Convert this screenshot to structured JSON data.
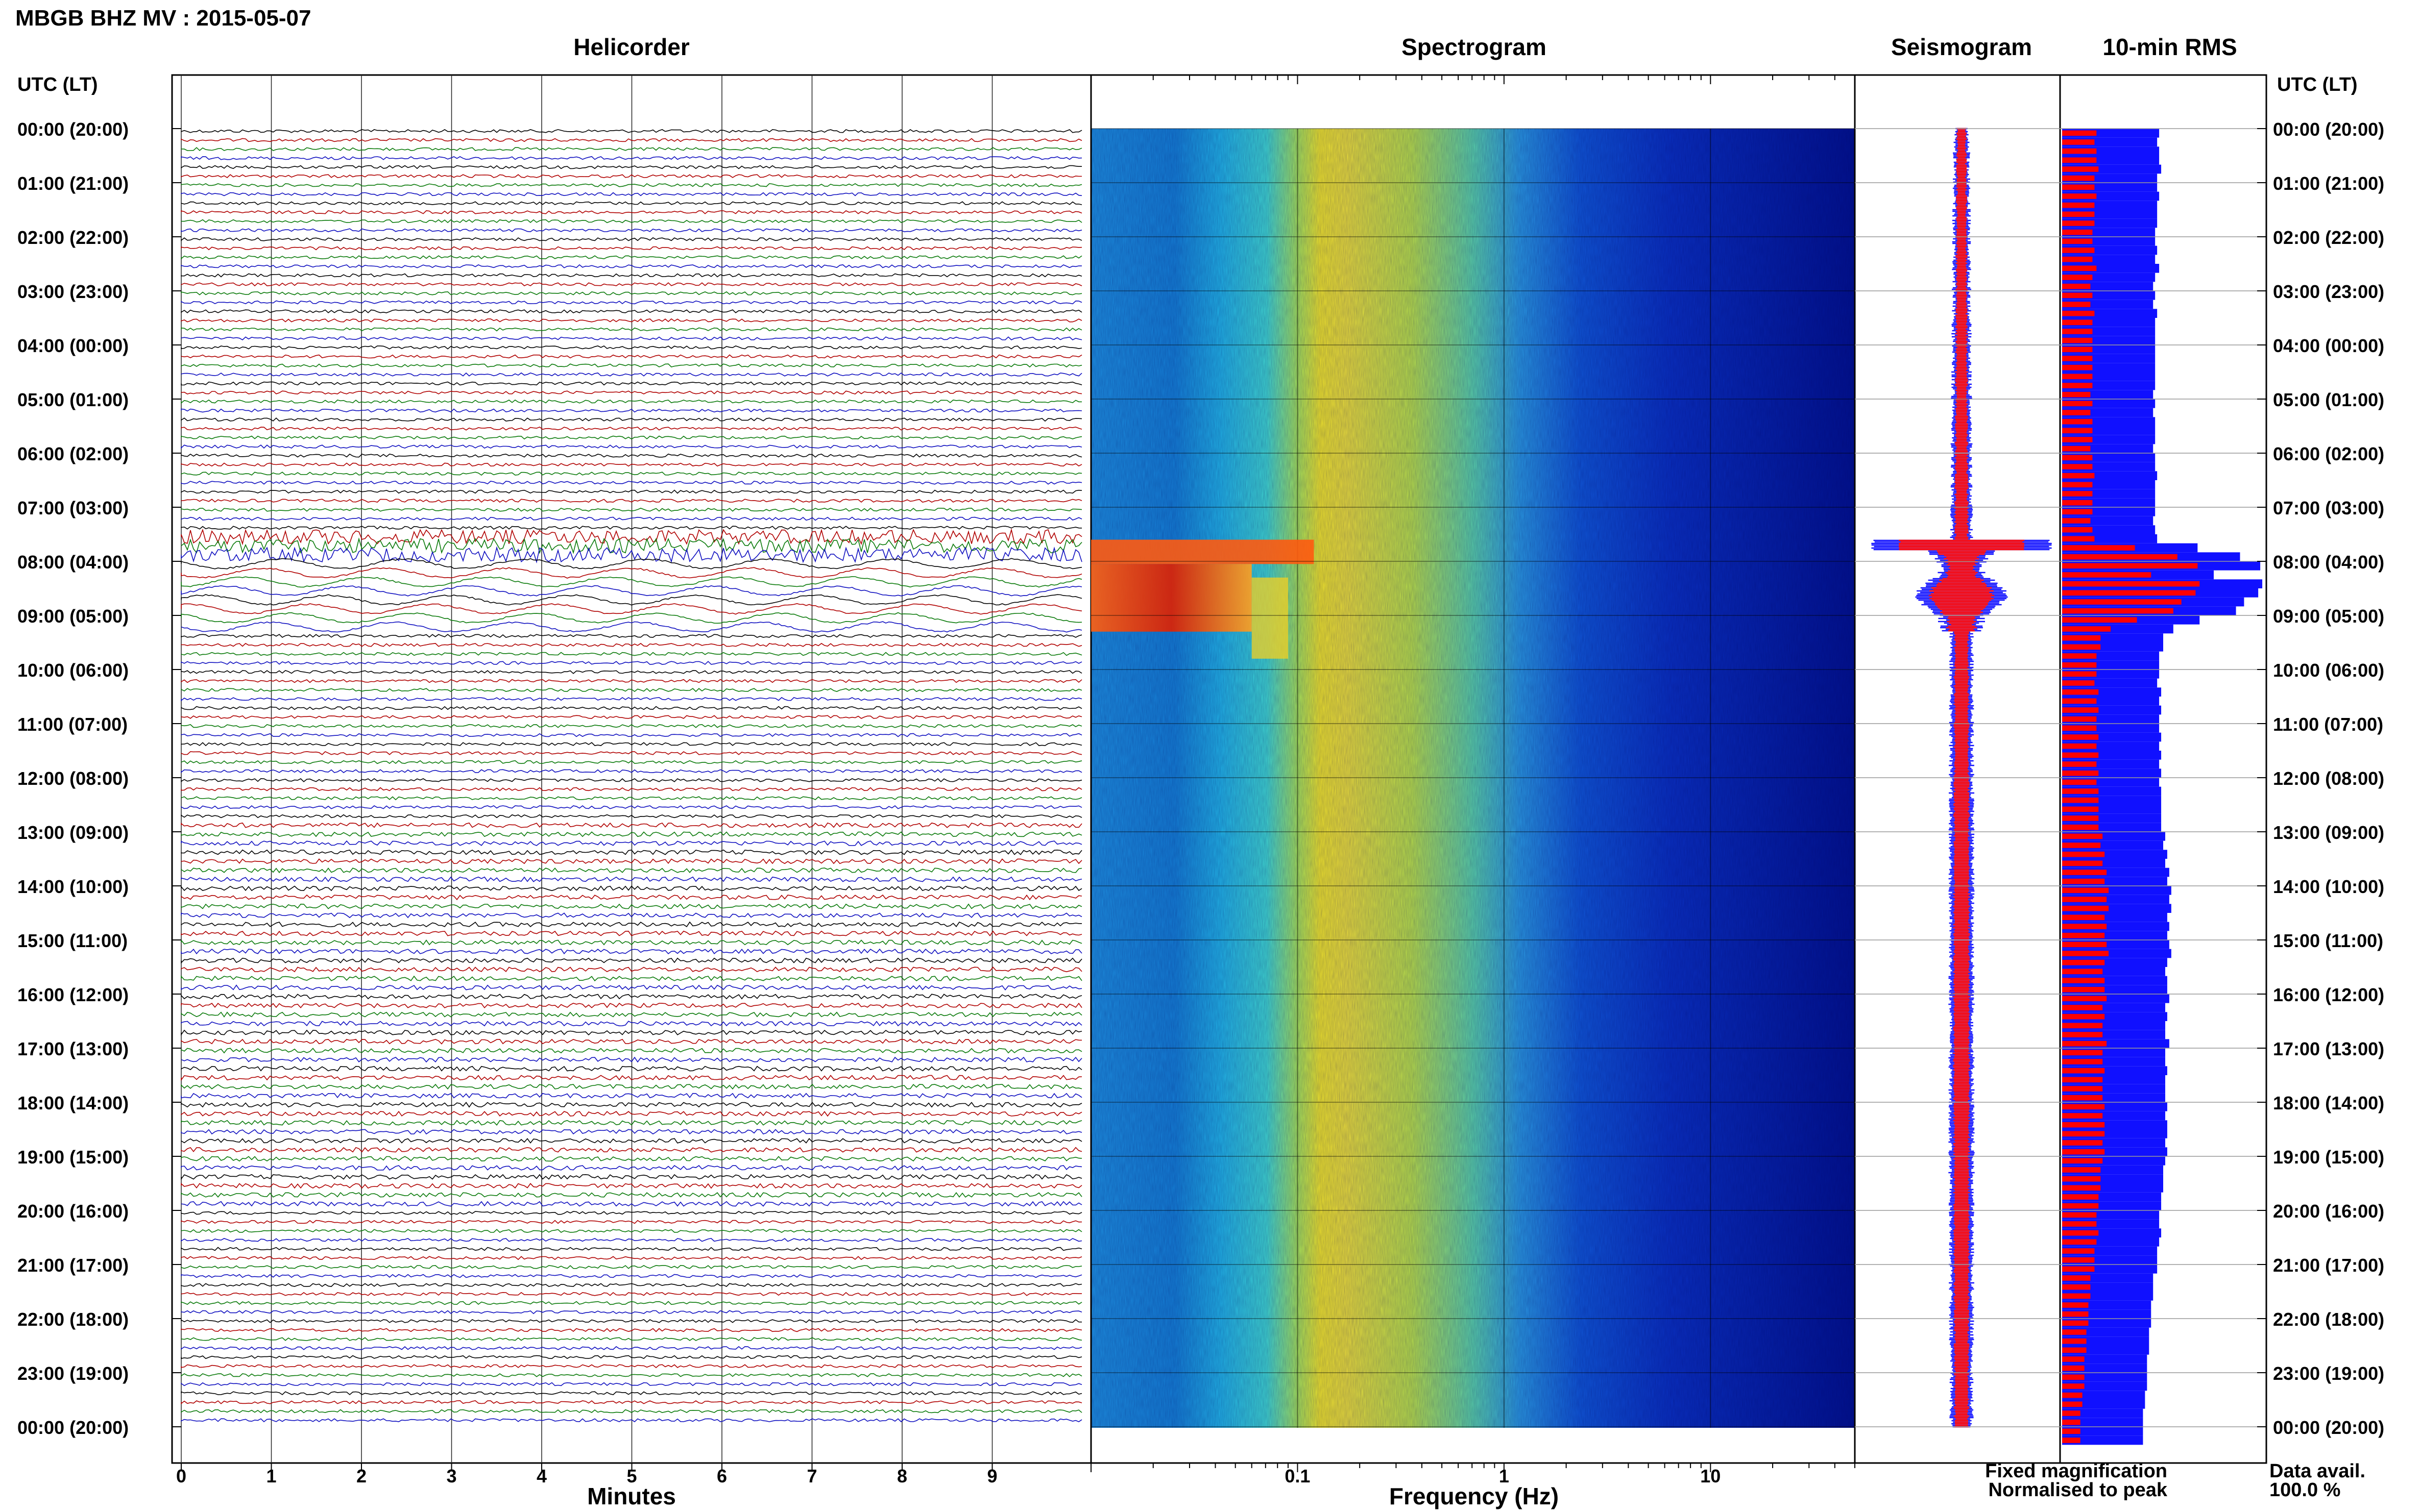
{
  "header": {
    "station_title": "MBGB BHZ MV : 2015-05-07",
    "left_axis_label": "UTC (LT)",
    "right_axis_label": "UTC (LT)"
  },
  "panels": {
    "helicorder": "Helicorder",
    "spectrogram": "Spectrogram",
    "seismogram": "Seismogram",
    "rms": "10-min RMS"
  },
  "time_labels": [
    "00:00 (20:00)",
    "01:00 (21:00)",
    "02:00 (22:00)",
    "03:00 (23:00)",
    "04:00 (00:00)",
    "05:00 (01:00)",
    "06:00 (02:00)",
    "07:00 (03:00)",
    "08:00 (04:00)",
    "09:00 (05:00)",
    "10:00 (06:00)",
    "11:00 (07:00)",
    "12:00 (08:00)",
    "13:00 (09:00)",
    "14:00 (10:00)",
    "15:00 (11:00)",
    "16:00 (12:00)",
    "17:00 (13:00)",
    "18:00 (14:00)",
    "19:00 (15:00)",
    "20:00 (16:00)",
    "21:00 (17:00)",
    "22:00 (18:00)",
    "23:00 (19:00)",
    "00:00 (20:00)"
  ],
  "helicorder": {
    "xlabel": "Minutes",
    "ticks": [
      "0",
      "1",
      "2",
      "3",
      "4",
      "5",
      "6",
      "7",
      "8",
      "9"
    ],
    "xlim": [
      0,
      10
    ],
    "trace_colors": [
      "#000000",
      "#b00000",
      "#0a7a0a",
      "#1010c0"
    ]
  },
  "spectrogram": {
    "xlabel": "Frequency (Hz)",
    "scale": "log",
    "xlim": [
      0.01,
      50
    ],
    "major_ticks": [
      0.1,
      1,
      10
    ],
    "tick_labels": [
      "0.1",
      "1",
      "10"
    ]
  },
  "legend": {
    "fixed": "Fixed magnification",
    "normalised": "Normalised to peak",
    "fixed_color": "#1010ff",
    "normalised_color": "#ff0000"
  },
  "availability": {
    "label": "Data avail.",
    "value": "100.0 %"
  },
  "chart_data": [
    {
      "type": "line",
      "panel": "Helicorder",
      "title": "Helicorder",
      "xlabel": "Minutes",
      "xlim": [
        0,
        10
      ],
      "ylim": [
        "00:00",
        "24:00"
      ],
      "rows_per_hour": 6,
      "note_events": [
        {
          "time": "07:40",
          "description_value": "large amplitude",
          "duration_rows": 9
        }
      ]
    },
    {
      "type": "heatmap",
      "panel": "Spectrogram",
      "title": "Spectrogram",
      "xlabel": "Frequency (Hz)",
      "xscale": "log",
      "xlim": [
        0.01,
        50
      ],
      "peak_band_hz": [
        0.2,
        0.35
      ],
      "event_band_hz": [
        0.01,
        0.1
      ],
      "event_hours": [
        7.6,
        9.3
      ]
    },
    {
      "type": "bar",
      "panel": "10-min RMS",
      "title": "10-min RMS",
      "series": [
        {
          "name": "Fixed magnification",
          "values": [
            0.48,
            0.47,
            0.48,
            0.48,
            0.49,
            0.47,
            0.47,
            0.48,
            0.47,
            0.47,
            0.47,
            0.46,
            0.46,
            0.47,
            0.46,
            0.48,
            0.46,
            0.45,
            0.46,
            0.45,
            0.47,
            0.46,
            0.46,
            0.46,
            0.46,
            0.46,
            0.46,
            0.46,
            0.46,
            0.45,
            0.46,
            0.45,
            0.46,
            0.46,
            0.46,
            0.45,
            0.46,
            0.46,
            0.47,
            0.46,
            0.46,
            0.46,
            0.46,
            0.45,
            0.46,
            0.47,
            0.67,
            0.88,
            0.98,
            0.75,
            0.99,
            0.97,
            0.9,
            0.86,
            0.68,
            0.55,
            0.5,
            0.5,
            0.48,
            0.48,
            0.48,
            0.47,
            0.49,
            0.48,
            0.49,
            0.48,
            0.48,
            0.49,
            0.48,
            0.49,
            0.48,
            0.49,
            0.48,
            0.49,
            0.49,
            0.49,
            0.49,
            0.49,
            0.51,
            0.5,
            0.52,
            0.51,
            0.53,
            0.52,
            0.54,
            0.53,
            0.54,
            0.52,
            0.53,
            0.52,
            0.53,
            0.54,
            0.52,
            0.51,
            0.52,
            0.52,
            0.53,
            0.51,
            0.52,
            0.51,
            0.51,
            0.53,
            0.51,
            0.51,
            0.52,
            0.51,
            0.51,
            0.51,
            0.52,
            0.51,
            0.52,
            0.52,
            0.51,
            0.52,
            0.51,
            0.5,
            0.5,
            0.5,
            0.49,
            0.49,
            0.48,
            0.48,
            0.49,
            0.48,
            0.47,
            0.47,
            0.47,
            0.45,
            0.45,
            0.45,
            0.44,
            0.44,
            0.44,
            0.43,
            0.43,
            0.43,
            0.42,
            0.42,
            0.42,
            0.42,
            0.41,
            0.41,
            0.4,
            0.4,
            0.4,
            0.4
          ]
        },
        {
          "name": "Normalised to peak",
          "values": [
            0.17,
            0.16,
            0.17,
            0.17,
            0.18,
            0.16,
            0.16,
            0.17,
            0.16,
            0.16,
            0.16,
            0.15,
            0.15,
            0.16,
            0.15,
            0.17,
            0.15,
            0.14,
            0.15,
            0.14,
            0.16,
            0.15,
            0.15,
            0.15,
            0.15,
            0.15,
            0.15,
            0.15,
            0.15,
            0.14,
            0.15,
            0.14,
            0.15,
            0.15,
            0.15,
            0.14,
            0.15,
            0.15,
            0.16,
            0.15,
            0.15,
            0.15,
            0.15,
            0.14,
            0.15,
            0.16,
            0.36,
            0.57,
            0.67,
            0.44,
            0.68,
            0.66,
            0.59,
            0.55,
            0.37,
            0.24,
            0.19,
            0.19,
            0.17,
            0.17,
            0.17,
            0.16,
            0.18,
            0.17,
            0.18,
            0.17,
            0.17,
            0.18,
            0.17,
            0.18,
            0.17,
            0.18,
            0.17,
            0.18,
            0.18,
            0.18,
            0.18,
            0.18,
            0.2,
            0.19,
            0.21,
            0.2,
            0.22,
            0.21,
            0.23,
            0.22,
            0.23,
            0.21,
            0.22,
            0.21,
            0.22,
            0.23,
            0.21,
            0.2,
            0.21,
            0.21,
            0.22,
            0.2,
            0.21,
            0.2,
            0.2,
            0.22,
            0.2,
            0.2,
            0.21,
            0.2,
            0.2,
            0.2,
            0.21,
            0.2,
            0.21,
            0.21,
            0.2,
            0.21,
            0.2,
            0.19,
            0.19,
            0.19,
            0.18,
            0.18,
            0.17,
            0.17,
            0.18,
            0.17,
            0.16,
            0.16,
            0.16,
            0.14,
            0.14,
            0.14,
            0.13,
            0.13,
            0.13,
            0.12,
            0.12,
            0.12,
            0.11,
            0.11,
            0.11,
            0.11,
            0.1,
            0.1,
            0.09,
            0.09,
            0.09,
            0.09
          ]
        }
      ]
    }
  ]
}
